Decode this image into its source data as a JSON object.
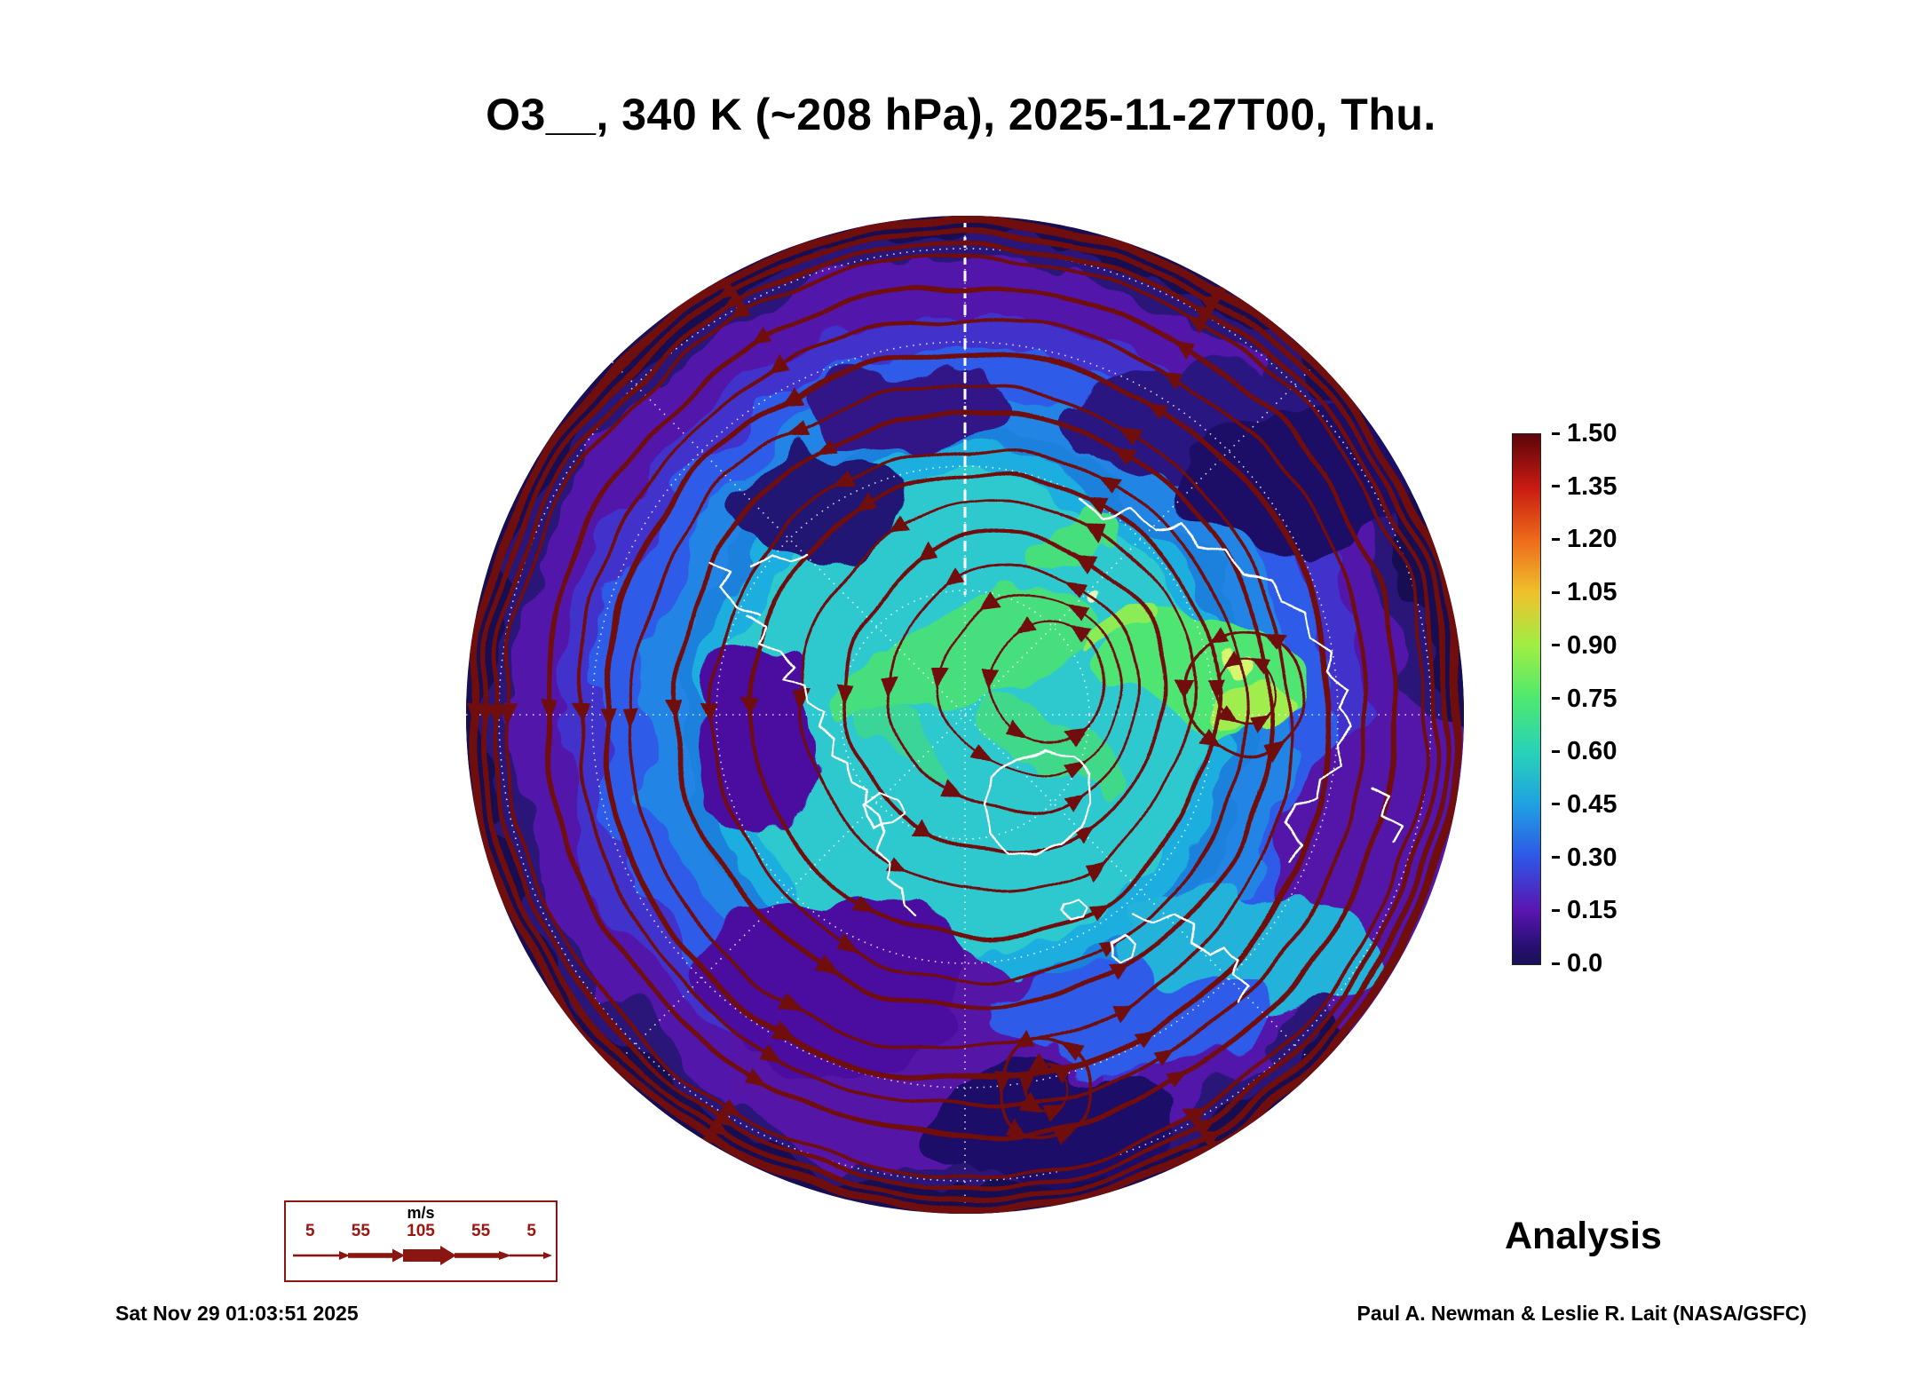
{
  "title": "O3__, 340 K (~208 hPa), 2025-11-27T00, Thu.",
  "analysis_label": "Analysis",
  "timestamp": "Sat Nov 29 01:03:51 2025",
  "credit": "Paul A. Newman & Leslie R. Lait (NASA/GSFC)",
  "colorbar": {
    "ticks": [
      "1.50",
      "1.35",
      "1.20",
      "1.05",
      "0.90",
      "0.75",
      "0.60",
      "0.45",
      "0.30",
      "0.15",
      "0.0"
    ]
  },
  "wind_legend": {
    "units": "m/s",
    "speeds": [
      "5",
      "55",
      "105",
      "55",
      "5"
    ]
  },
  "colors": {
    "streamline": "#70090f",
    "coastline": "#ffffff",
    "background": "#ffffff",
    "text": "#000000",
    "wind_legend_red": "#9e1410"
  },
  "chart_data": {
    "type": "heatmap",
    "title": "O3__, 340 K (~208 hPa), 2025-11-27T00, Thu.",
    "field": "O3 (ozone) on the 340 K isentropic surface (~208 hPa)",
    "valid_time": "2025-11-27T00",
    "projection": "north-polar-stereographic",
    "colorbar": {
      "range": [
        0.0,
        1.5
      ],
      "tick_step": 0.15,
      "ticks": [
        1.5,
        1.35,
        1.2,
        1.05,
        0.9,
        0.75,
        0.6,
        0.45,
        0.3,
        0.15,
        0.0
      ],
      "colors_low_to_high": [
        "#171052",
        "#5314aa",
        "#2e5ce8",
        "#1fa0e2",
        "#28d2b8",
        "#4ce870",
        "#9fee44",
        "#eec22c",
        "#ee6a1a",
        "#c81a12",
        "#5c050a"
      ],
      "legend_position": "right"
    },
    "overlays": [
      "horizontal wind streamlines with arrowheads (dark red)",
      "coastlines (white)",
      "latitude/longitude graticule (white dotted)"
    ],
    "wind_speed_scale_mps": [
      5,
      55,
      105,
      55,
      5
    ],
    "field_summary": [
      {
        "region": "polar cap and mid-latitude ring",
        "approx_value_range": [
          0.3,
          0.6
        ]
      },
      {
        "region": "green maxima patches near pole and over Siberia",
        "approx_value_range": [
          0.6,
          0.9
        ]
      },
      {
        "region": "subtropical purple ring",
        "approx_value_range": [
          0.15,
          0.3
        ]
      },
      {
        "region": "outer rim (low latitudes)",
        "approx_value_range": [
          0.0,
          0.15
        ]
      },
      {
        "region": "dense dark-red streamline belt (subtropical jet) around rim",
        "approx_value_range": [
          0.0,
          0.15
        ]
      }
    ],
    "annotations": [
      "Analysis",
      "Sat Nov 29 01:03:51 2025",
      "Paul A. Newman & Leslie R. Lait (NASA/GSFC)"
    ]
  }
}
